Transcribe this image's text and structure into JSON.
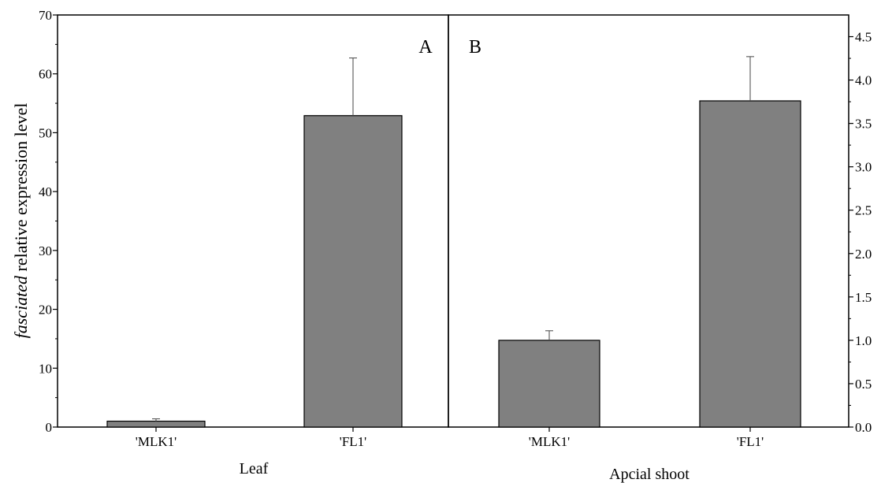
{
  "y_axis_title": {
    "italic": "fasciated",
    "rest": " relative expression level"
  },
  "chart_data": [
    {
      "type": "bar",
      "panel_label": "A",
      "xlabel": "Leaf",
      "categories": [
        "'MLK1'",
        "'FL1'"
      ],
      "values": [
        1.0,
        52.9
      ],
      "error_bars": [
        0.4,
        9.8
      ],
      "ylim": [
        0,
        70
      ],
      "yticks": [
        0,
        10,
        20,
        30,
        40,
        50,
        60,
        70
      ],
      "y_axis_side": "left",
      "bar_color": "#808080"
    },
    {
      "type": "bar",
      "panel_label": "B",
      "xlabel": "Apcial shoot",
      "categories": [
        "'MLK1'",
        "'FL1'"
      ],
      "values": [
        1.0,
        3.76
      ],
      "error_bars": [
        0.11,
        0.51
      ],
      "ylim": [
        0,
        4.75
      ],
      "yticks": [
        "0.0",
        "0.5",
        "1.0",
        "1.5",
        "2.0",
        "2.5",
        "3.0",
        "3.5",
        "4.0",
        "4.5"
      ],
      "y_axis_side": "right",
      "bar_color": "#808080"
    }
  ]
}
